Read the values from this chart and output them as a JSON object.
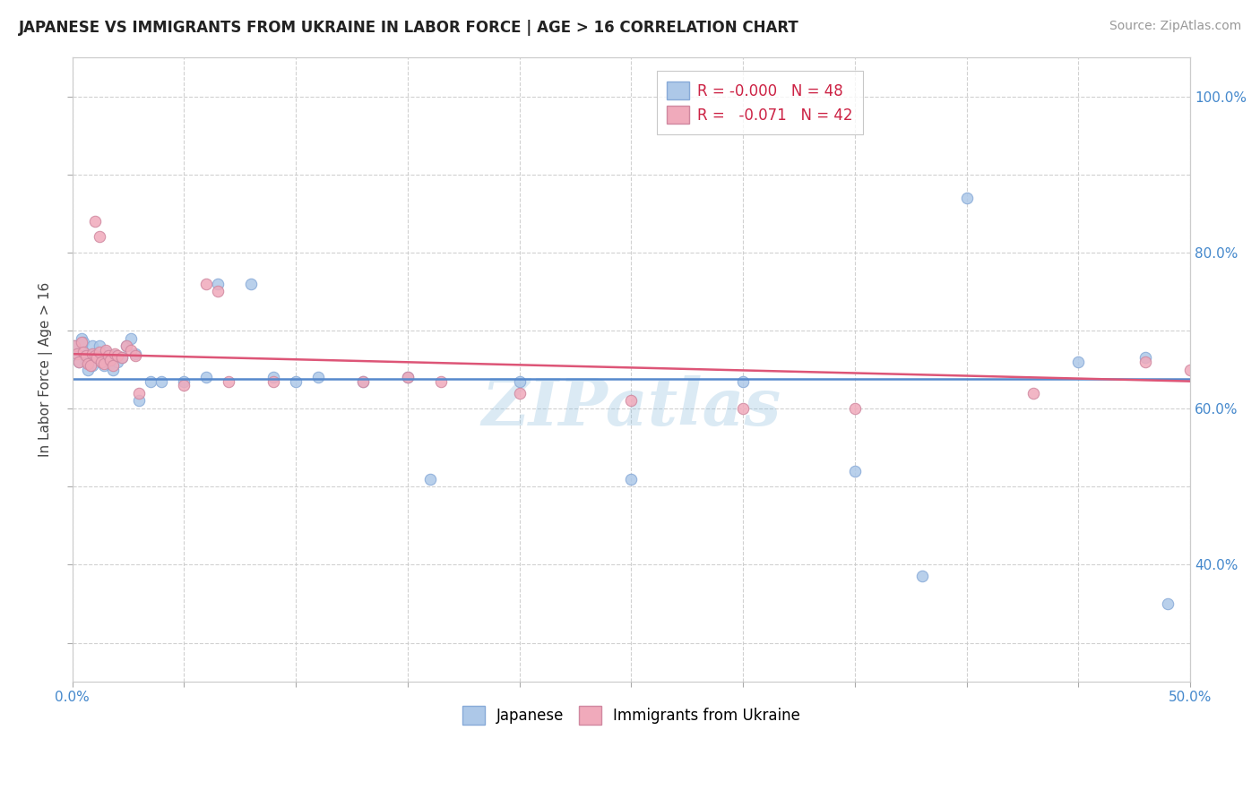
{
  "title": "JAPANESE VS IMMIGRANTS FROM UKRAINE IN LABOR FORCE | AGE > 16 CORRELATION CHART",
  "source": "Source: ZipAtlas.com",
  "ylabel": "In Labor Force | Age > 16",
  "xlim": [
    0.0,
    0.5
  ],
  "ylim": [
    0.25,
    1.05
  ],
  "x_ticks": [
    0.0,
    0.05,
    0.1,
    0.15,
    0.2,
    0.25,
    0.3,
    0.35,
    0.4,
    0.45,
    0.5
  ],
  "x_tick_labels": [
    "0.0%",
    "",
    "",
    "",
    "",
    "",
    "",
    "",
    "",
    "",
    "50.0%"
  ],
  "y_ticks": [
    0.3,
    0.4,
    0.5,
    0.6,
    0.7,
    0.8,
    0.9,
    1.0
  ],
  "y_tick_labels_right": [
    "",
    "40.0%",
    "",
    "60.0%",
    "",
    "80.0%",
    "",
    "100.0%"
  ],
  "color_japanese": "#adc8e8",
  "color_ukraine": "#f0aabb",
  "color_japanese_line": "#5588cc",
  "color_ukraine_line": "#dd5577",
  "watermark": "ZIPatlas",
  "background_color": "#ffffff",
  "grid_color": "#cccccc",
  "japanese_x": [
    0.001,
    0.002,
    0.003,
    0.004,
    0.005,
    0.006,
    0.006,
    0.007,
    0.008,
    0.009,
    0.009,
    0.01,
    0.011,
    0.012,
    0.013,
    0.014,
    0.015,
    0.016,
    0.017,
    0.018,
    0.019,
    0.02,
    0.022,
    0.024,
    0.026,
    0.028,
    0.03,
    0.035,
    0.04,
    0.05,
    0.06,
    0.065,
    0.08,
    0.09,
    0.1,
    0.11,
    0.13,
    0.15,
    0.16,
    0.2,
    0.25,
    0.3,
    0.35,
    0.38,
    0.4,
    0.45,
    0.48,
    0.49
  ],
  "japanese_y": [
    0.68,
    0.67,
    0.66,
    0.69,
    0.685,
    0.67,
    0.66,
    0.65,
    0.665,
    0.68,
    0.655,
    0.67,
    0.665,
    0.68,
    0.66,
    0.655,
    0.672,
    0.668,
    0.658,
    0.65,
    0.668,
    0.66,
    0.665,
    0.68,
    0.69,
    0.67,
    0.61,
    0.635,
    0.635,
    0.635,
    0.64,
    0.76,
    0.76,
    0.64,
    0.635,
    0.64,
    0.635,
    0.64,
    0.51,
    0.635,
    0.51,
    0.635,
    0.52,
    0.385,
    0.87,
    0.66,
    0.665,
    0.35
  ],
  "ukraine_x": [
    0.001,
    0.002,
    0.003,
    0.004,
    0.005,
    0.006,
    0.007,
    0.008,
    0.009,
    0.01,
    0.011,
    0.012,
    0.013,
    0.014,
    0.015,
    0.016,
    0.017,
    0.018,
    0.019,
    0.02,
    0.022,
    0.024,
    0.026,
    0.028,
    0.03,
    0.05,
    0.06,
    0.065,
    0.07,
    0.09,
    0.13,
    0.15,
    0.165,
    0.2,
    0.25,
    0.3,
    0.35,
    0.43,
    0.48,
    0.5,
    0.01,
    0.012
  ],
  "ukraine_y": [
    0.68,
    0.67,
    0.66,
    0.685,
    0.672,
    0.668,
    0.658,
    0.655,
    0.67,
    0.668,
    0.665,
    0.672,
    0.66,
    0.658,
    0.675,
    0.668,
    0.662,
    0.655,
    0.67,
    0.668,
    0.665,
    0.68,
    0.675,
    0.668,
    0.62,
    0.63,
    0.76,
    0.75,
    0.635,
    0.635,
    0.635,
    0.64,
    0.635,
    0.62,
    0.61,
    0.6,
    0.6,
    0.62,
    0.66,
    0.65,
    0.84,
    0.82
  ],
  "jline_y0": 0.638,
  "jline_y1": 0.638,
  "uline_y0": 0.67,
  "uline_y1": 0.635,
  "legend_text1": "R = -0.000   N = 48",
  "legend_text2": "R =   -0.071   N = 42"
}
